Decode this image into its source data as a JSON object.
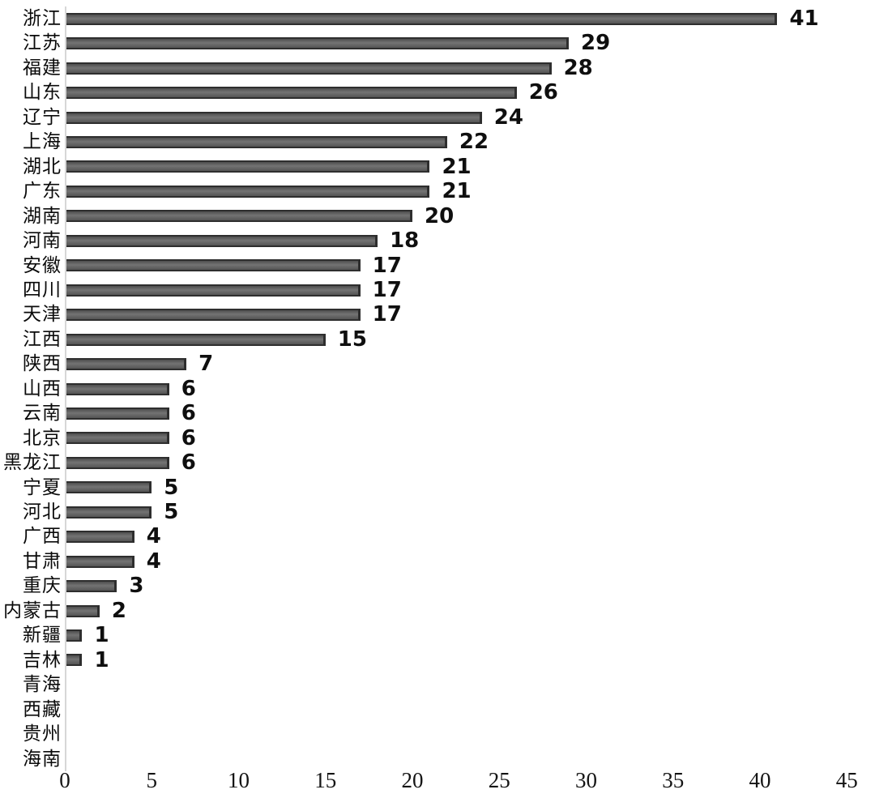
{
  "chart_data": {
    "type": "bar",
    "orientation": "horizontal",
    "title": "",
    "xlabel": "",
    "ylabel": "",
    "categories": [
      "浙江",
      "江苏",
      "福建",
      "山东",
      "辽宁",
      "上海",
      "湖北",
      "广东",
      "湖南",
      "河南",
      "安徽",
      "四川",
      "天津",
      "江西",
      "陕西",
      "山西",
      "云南",
      "北京",
      "黑龙江",
      "宁夏",
      "河北",
      "广西",
      "甘肃",
      "重庆",
      "内蒙古",
      "新疆",
      "吉林",
      "青海",
      "西藏",
      "贵州",
      "海南"
    ],
    "values": [
      41,
      29,
      28,
      26,
      24,
      22,
      21,
      21,
      20,
      18,
      17,
      17,
      17,
      15,
      7,
      6,
      6,
      6,
      6,
      5,
      5,
      4,
      4,
      3,
      2,
      1,
      1,
      0,
      0,
      0,
      0
    ],
    "x_ticks": [
      "0",
      "5",
      "10",
      "15",
      "20",
      "25",
      "30",
      "35",
      "40",
      "45"
    ],
    "xlim": [
      0,
      45
    ],
    "grid": false,
    "legend": false,
    "data_labels": "value shown right of each bar; hidden for zero-value rows",
    "colors": {
      "bar_fill": "#646464",
      "bar_border": "#2e2e2e",
      "axis_line": "#d7d7d7",
      "category_text": "#0a0a0a",
      "value_text": "#0f0f0f",
      "tick_text": "#141414",
      "background": "#ffffff"
    }
  }
}
